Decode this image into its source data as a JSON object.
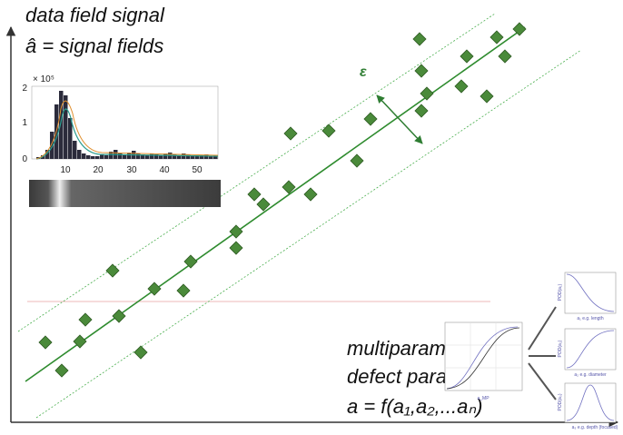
{
  "header": {
    "line1": "data field signal",
    "line2": "â = signal fields"
  },
  "epsilon": "ε",
  "histogram": {
    "exponent": "× 10⁵",
    "yticks": [
      "2",
      "1",
      "0"
    ],
    "xticks": [
      "10",
      "20",
      "30",
      "40",
      "50"
    ]
  },
  "parameters": {
    "line1": "multiparametric",
    "line2": "defect parameters",
    "line3": "a = f(a₁,a₂,...aₙ)"
  },
  "pod_main": {
    "xlabel": "a_MP"
  },
  "pod_plots": [
    {
      "ylabel": "POD(a₁)",
      "xlabel": "a₁ e.g. length"
    },
    {
      "ylabel": "POD(a₂)",
      "xlabel": "a₂ e.g. diameter"
    },
    {
      "ylabel": "POD(a₃)",
      "xlabel": "a₃ e.g. depth (focused)"
    }
  ]
}
